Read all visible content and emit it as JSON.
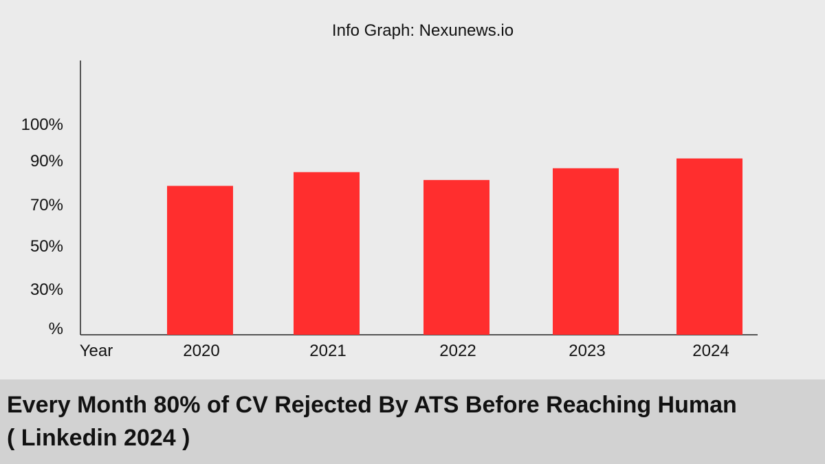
{
  "chart_data": {
    "type": "bar",
    "source": "Info Graph: Nexunews.io",
    "x_axis_label": "Year",
    "y_tick_labels": [
      "%",
      "30%",
      "50%",
      "70%",
      "90%",
      "100%"
    ],
    "categories": [
      "2020",
      "2021",
      "2022",
      "2023",
      "2024"
    ],
    "values": [
      76,
      83,
      79,
      85,
      90
    ],
    "ylabel": "",
    "bar_color": "#ff2e2e",
    "grid": false,
    "legend": "none"
  },
  "caption": {
    "line1": "Every Month 80% of CV Rejected By ATS Before Reaching Human",
    "line2": "( Linkedin 2024 )"
  }
}
